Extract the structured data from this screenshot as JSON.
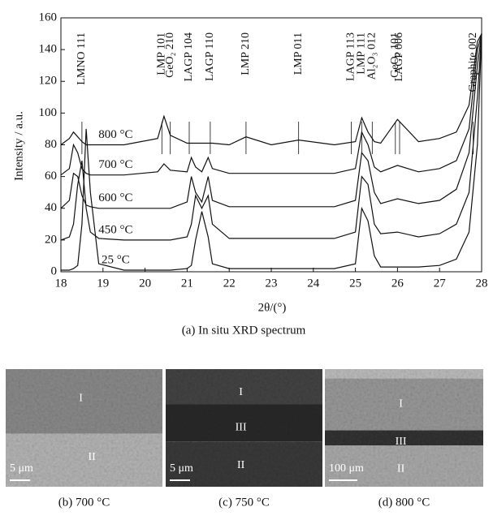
{
  "chart_data": {
    "type": "line",
    "xlabel": "2θ/(°)",
    "ylabel": "Intensity / a.u.",
    "caption": "(a) In situ XRD spectrum",
    "xlim": [
      18,
      28
    ],
    "ylim": [
      0,
      160
    ],
    "xticks": [
      18,
      19,
      20,
      21,
      22,
      23,
      24,
      25,
      26,
      27,
      28
    ],
    "yticks": [
      0,
      20,
      40,
      60,
      80,
      100,
      120,
      140,
      160
    ],
    "x": [
      18,
      18.2,
      18.3,
      18.4,
      18.5,
      18.6,
      18.7,
      18.9,
      19.5,
      20.3,
      20.45,
      20.6,
      21.0,
      21.1,
      21.2,
      21.35,
      21.5,
      21.6,
      22,
      22.4,
      23,
      23.65,
      24.5,
      25.0,
      25.15,
      25.3,
      25.45,
      25.6,
      26.0,
      26.5,
      27.0,
      27.4,
      27.7,
      27.9,
      28
    ],
    "series": [
      {
        "name": "25 °C",
        "color": "#111111",
        "values": [
          1,
          1,
          2,
          4,
          30,
          90,
          50,
          5,
          1,
          1,
          1,
          1,
          2,
          4,
          20,
          38,
          22,
          5,
          2,
          2,
          2,
          2,
          2,
          5,
          40,
          32,
          10,
          3,
          3,
          3,
          4,
          8,
          25,
          80,
          150
        ]
      },
      {
        "name": "450 °C",
        "color": "#111111",
        "values": [
          20,
          22,
          30,
          55,
          70,
          40,
          25,
          21,
          20,
          20,
          20,
          20,
          22,
          30,
          48,
          40,
          48,
          30,
          21,
          21,
          21,
          21,
          21,
          25,
          60,
          55,
          30,
          24,
          25,
          22,
          24,
          30,
          50,
          110,
          150
        ]
      },
      {
        "name": "600 °C",
        "color": "#111111",
        "values": [
          40,
          45,
          62,
          60,
          48,
          42,
          41,
          40,
          40,
          40,
          40,
          40,
          44,
          60,
          50,
          44,
          60,
          45,
          41,
          41,
          41,
          41,
          41,
          45,
          75,
          70,
          50,
          43,
          46,
          43,
          45,
          52,
          75,
          130,
          150
        ]
      },
      {
        "name": "700 °C",
        "color": "#111111",
        "values": [
          61,
          65,
          80,
          75,
          65,
          62,
          61,
          61,
          61,
          63,
          68,
          64,
          63,
          72,
          66,
          63,
          72,
          65,
          62,
          62,
          62,
          62,
          62,
          65,
          88,
          80,
          66,
          63,
          67,
          63,
          65,
          70,
          90,
          140,
          150
        ]
      },
      {
        "name": "800 °C",
        "color": "#111111",
        "values": [
          80,
          84,
          88,
          85,
          82,
          80,
          80,
          80,
          80,
          84,
          98,
          86,
          81,
          81,
          81,
          81,
          81,
          81,
          80,
          85,
          80,
          83,
          80,
          82,
          97,
          88,
          82,
          81,
          96,
          82,
          84,
          88,
          105,
          145,
          150
        ]
      }
    ],
    "annotations": [
      {
        "text": "LMNO 111",
        "x": 18.5
      },
      {
        "text": "LMP 101",
        "x": 20.4
      },
      {
        "text": "GeO₂ 210",
        "x": 20.6
      },
      {
        "text": "LAGP 104",
        "x": 21.05
      },
      {
        "text": "LAGP 110",
        "x": 21.55
      },
      {
        "text": "LMP 210",
        "x": 22.4
      },
      {
        "text": "LMP 011",
        "x": 23.65
      },
      {
        "text": "LAGP 113",
        "x": 24.9
      },
      {
        "text": "LMP 111",
        "x": 25.15
      },
      {
        "text": "Al₂O₃ 012",
        "x": 25.4
      },
      {
        "text": "GeO₂ 101",
        "x": 25.95
      },
      {
        "text": "LAGP 006",
        "x": 26.05
      },
      {
        "text": "Graphite 002",
        "x": 27.8
      }
    ]
  },
  "panels": [
    {
      "caption": "(b) 700 °C",
      "layers": [
        "I",
        "II"
      ],
      "scale": "5 μm"
    },
    {
      "caption": "(c) 750 °C",
      "layers": [
        "I",
        "III",
        "II"
      ],
      "scale": "5 μm"
    },
    {
      "caption": "(d) 800 °C",
      "layers": [
        "I",
        "III",
        "II"
      ],
      "scale": "100 μm"
    }
  ]
}
